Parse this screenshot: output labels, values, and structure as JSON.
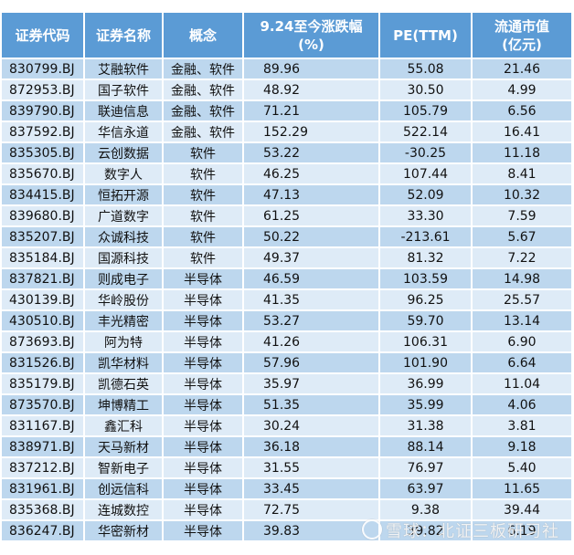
{
  "table": {
    "headers": [
      {
        "line1": "证券代码",
        "line2": ""
      },
      {
        "line1": "证券名称",
        "line2": ""
      },
      {
        "line1": "概念",
        "line2": ""
      },
      {
        "line1": "9.24至今涨跌幅",
        "line2": "(%)"
      },
      {
        "line1": "PE(TTM)",
        "line2": ""
      },
      {
        "line1": "流通市值",
        "line2": "(亿元)"
      }
    ],
    "rows": [
      {
        "code": "830799.BJ",
        "name": "艾融软件",
        "concept": "金融、软件",
        "change": "89.96",
        "pe": "55.08",
        "mcap": "21.46"
      },
      {
        "code": "872953.BJ",
        "name": "国子软件",
        "concept": "金融、软件",
        "change": "48.92",
        "pe": "30.50",
        "mcap": "4.99"
      },
      {
        "code": "839790.BJ",
        "name": "联迪信息",
        "concept": "金融、软件",
        "change": "71.21",
        "pe": "105.79",
        "mcap": "6.56"
      },
      {
        "code": "837592.BJ",
        "name": "华信永道",
        "concept": "金融、软件",
        "change": "152.29",
        "pe": "522.14",
        "mcap": "16.41"
      },
      {
        "code": "835305.BJ",
        "name": "云创数据",
        "concept": "软件",
        "change": "53.22",
        "pe": "-30.25",
        "mcap": "11.18"
      },
      {
        "code": "835670.BJ",
        "name": "数字人",
        "concept": "软件",
        "change": "46.25",
        "pe": "107.44",
        "mcap": "8.41"
      },
      {
        "code": "834415.BJ",
        "name": "恒拓开源",
        "concept": "软件",
        "change": "47.13",
        "pe": "52.09",
        "mcap": "10.32"
      },
      {
        "code": "839680.BJ",
        "name": "广道数字",
        "concept": "软件",
        "change": "61.25",
        "pe": "33.30",
        "mcap": "7.59"
      },
      {
        "code": "835207.BJ",
        "name": "众诚科技",
        "concept": "软件",
        "change": "50.22",
        "pe": "-213.61",
        "mcap": "5.67"
      },
      {
        "code": "835184.BJ",
        "name": "国源科技",
        "concept": "软件",
        "change": "49.37",
        "pe": "81.32",
        "mcap": "7.22"
      },
      {
        "code": "837821.BJ",
        "name": "则成电子",
        "concept": "半导体",
        "change": "46.59",
        "pe": "103.59",
        "mcap": "14.98"
      },
      {
        "code": "430139.BJ",
        "name": "华岭股份",
        "concept": "半导体",
        "change": "41.35",
        "pe": "96.25",
        "mcap": "25.57"
      },
      {
        "code": "430510.BJ",
        "name": "丰光精密",
        "concept": "半导体",
        "change": "53.27",
        "pe": "59.70",
        "mcap": "13.14"
      },
      {
        "code": "873693.BJ",
        "name": "阿为特",
        "concept": "半导体",
        "change": "41.26",
        "pe": "106.31",
        "mcap": "6.90"
      },
      {
        "code": "831526.BJ",
        "name": "凯华材料",
        "concept": "半导体",
        "change": "57.96",
        "pe": "101.90",
        "mcap": "6.64"
      },
      {
        "code": "835179.BJ",
        "name": "凯德石英",
        "concept": "半导体",
        "change": "35.97",
        "pe": "36.99",
        "mcap": "11.04"
      },
      {
        "code": "873570.BJ",
        "name": "坤博精工",
        "concept": "半导体",
        "change": "51.35",
        "pe": "35.99",
        "mcap": "4.06"
      },
      {
        "code": "831167.BJ",
        "name": "鑫汇科",
        "concept": "半导体",
        "change": "30.24",
        "pe": "31.38",
        "mcap": "3.81"
      },
      {
        "code": "838971.BJ",
        "name": "天马新材",
        "concept": "半导体",
        "change": "36.18",
        "pe": "88.14",
        "mcap": "9.18"
      },
      {
        "code": "837212.BJ",
        "name": "智新电子",
        "concept": "半导体",
        "change": "31.55",
        "pe": "76.97",
        "mcap": "5.40"
      },
      {
        "code": "831961.BJ",
        "name": "创远信科",
        "concept": "半导体",
        "change": "33.45",
        "pe": "63.97",
        "mcap": "11.65"
      },
      {
        "code": "835368.BJ",
        "name": "连城数控",
        "concept": "半导体",
        "change": "72.75",
        "pe": "9.38",
        "mcap": "39.44"
      },
      {
        "code": "836247.BJ",
        "name": "华密新材",
        "concept": "半导体",
        "change": "39.83",
        "pe": "39.82",
        "mcap": "6.19"
      }
    ]
  },
  "watermark": {
    "text": "雪球：北证三板研习社",
    "icon": "snowball-logo-icon"
  },
  "colors": {
    "header_bg": "#5b9bd5",
    "row_odd": "#bdd7ee",
    "row_even": "#deebf7"
  }
}
